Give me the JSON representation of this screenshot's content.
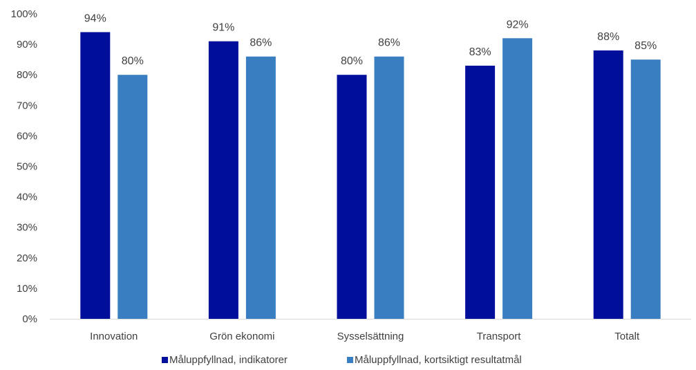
{
  "chart_data": {
    "type": "bar",
    "categories": [
      "Innovation",
      "Grön ekonomi",
      "Sysselsättning",
      "Transport",
      "Totalt"
    ],
    "series": [
      {
        "name": "Måluppfyllnad, indikatorer",
        "color": "#000E9C",
        "values": [
          94,
          91,
          80,
          83,
          88
        ],
        "labels": [
          "94%",
          "91%",
          "80%",
          "83%",
          "88%"
        ]
      },
      {
        "name": "Måluppfyllnad, kortsiktigt resultatmål",
        "color": "#3A7EC2",
        "values": [
          80,
          86,
          86,
          92,
          85
        ],
        "labels": [
          "80%",
          "86%",
          "86%",
          "92%",
          "85%"
        ]
      }
    ],
    "ylim": [
      0,
      100
    ],
    "y_ticks": [
      "0%",
      "10%",
      "20%",
      "30%",
      "40%",
      "50%",
      "60%",
      "70%",
      "80%",
      "90%",
      "100%"
    ],
    "grid": false,
    "legend_position": "bottom-center",
    "title": "",
    "xlabel": "",
    "ylabel": ""
  }
}
